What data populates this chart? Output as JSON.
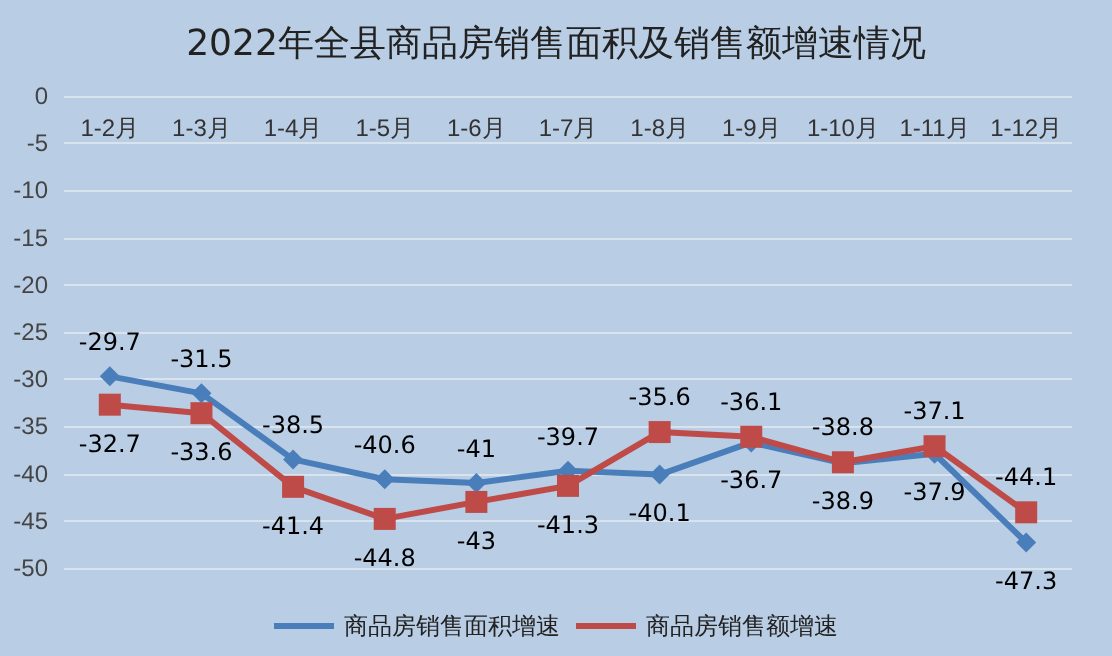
{
  "chart_data": {
    "type": "line",
    "title": "2022年全县商品房销售面积及销售额增速情况",
    "categories": [
      "1-2月",
      "1-3月",
      "1-4月",
      "1-5月",
      "1-6月",
      "1-7月",
      "1-8月",
      "1-9月",
      "1-10月",
      "1-11月",
      "1-12月"
    ],
    "series": [
      {
        "name": "商品房销售面积增速",
        "color": "#4a7ebb",
        "marker": "diamond",
        "values": [
          -29.7,
          -31.5,
          -38.5,
          -40.6,
          -41,
          -39.7,
          -40.1,
          -36.7,
          -38.9,
          -37.9,
          -47.3
        ]
      },
      {
        "name": "商品房销售额增速",
        "color": "#be4b48",
        "marker": "square",
        "values": [
          -32.7,
          -33.6,
          -41.4,
          -44.8,
          -43,
          -41.3,
          -35.6,
          -36.1,
          -38.8,
          -37.1,
          -44.1
        ]
      }
    ],
    "ylim": [
      -50,
      0
    ],
    "yticks": [
      0,
      -5,
      -10,
      -15,
      -20,
      -25,
      -30,
      -35,
      -40,
      -45,
      -50
    ],
    "grid": "y",
    "legend": "bottom",
    "data_labels": true
  }
}
